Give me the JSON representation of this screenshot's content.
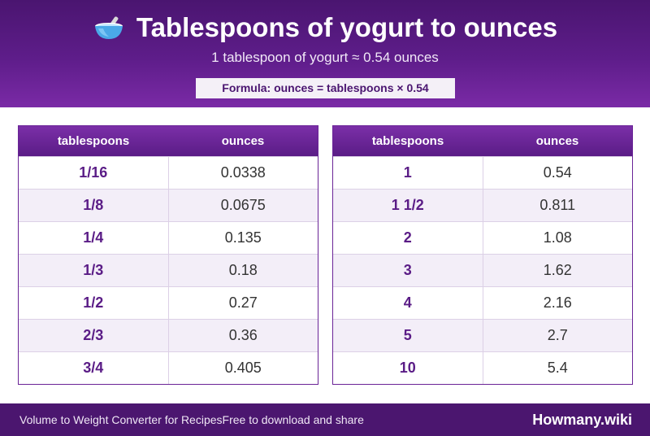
{
  "header": {
    "title": "Tablespoons of yogurt to ounces",
    "title_icon": "bowl-with-spoon-icon",
    "subtitle": "1 tablespoon of yogurt ≈ 0.54 ounces",
    "formula": "Formula: ounces = tablespoons × 0.54"
  },
  "tables": [
    {
      "headers": [
        "tablespoons",
        "ounces"
      ],
      "rows": [
        [
          "1/16",
          "0.0338"
        ],
        [
          "1/8",
          "0.0675"
        ],
        [
          "1/4",
          "0.135"
        ],
        [
          "1/3",
          "0.18"
        ],
        [
          "1/2",
          "0.27"
        ],
        [
          "2/3",
          "0.36"
        ],
        [
          "3/4",
          "0.405"
        ]
      ]
    },
    {
      "headers": [
        "tablespoons",
        "ounces"
      ],
      "rows": [
        [
          "1",
          "0.54"
        ],
        [
          "1 1/2",
          "0.811"
        ],
        [
          "2",
          "1.08"
        ],
        [
          "3",
          "1.62"
        ],
        [
          "4",
          "2.16"
        ],
        [
          "5",
          "2.7"
        ],
        [
          "10",
          "5.4"
        ]
      ]
    }
  ],
  "footer": {
    "left_text_1": "Volume to Weight Converter for Recipes",
    "left_text_2": "Free to download and share",
    "brand": "Howmany.wiki"
  },
  "colors": {
    "header_purple": "#5e1d8a",
    "footer_purple": "#4b166f",
    "accent_text": "#5a1c86"
  }
}
